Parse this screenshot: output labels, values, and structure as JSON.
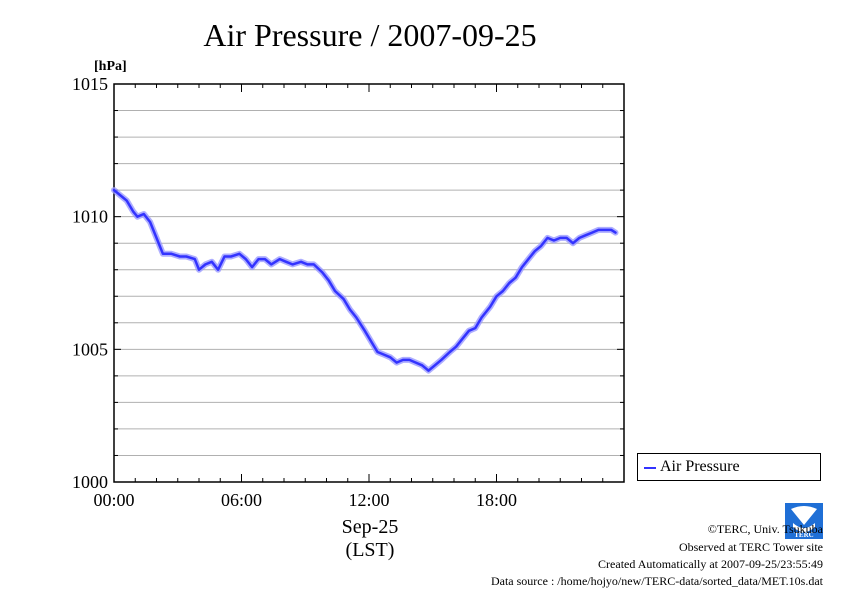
{
  "chart_data": {
    "type": "line",
    "title": "Air Pressure / 2007-09-25",
    "ylabel": "[hPa]",
    "xlabel": "Sep-25",
    "xlabel2": "(LST)",
    "ylim": [
      1000,
      1015
    ],
    "xlim": [
      0,
      24
    ],
    "yticks": [
      "1000",
      "1005",
      "1010",
      "1015"
    ],
    "xticks": [
      "00:00",
      "06:00",
      "12:00",
      "18:00"
    ],
    "grid": true,
    "legend_position": "outside-right",
    "series": [
      {
        "name": "Air Pressure",
        "color": "#3333ff",
        "x": [
          0,
          0.3,
          0.6,
          0.9,
          1.1,
          1.4,
          1.7,
          2.0,
          2.3,
          2.7,
          3.1,
          3.4,
          3.8,
          4.0,
          4.3,
          4.6,
          4.9,
          5.2,
          5.5,
          5.9,
          6.2,
          6.5,
          6.8,
          7.1,
          7.4,
          7.8,
          8.1,
          8.4,
          8.8,
          9.1,
          9.4,
          9.8,
          10.1,
          10.4,
          10.8,
          11.1,
          11.4,
          11.8,
          12.1,
          12.4,
          12.7,
          13.0,
          13.3,
          13.6,
          13.9,
          14.2,
          14.5,
          14.8,
          15.1,
          15.4,
          15.8,
          16.1,
          16.4,
          16.7,
          17.0,
          17.3,
          17.7,
          18.0,
          18.3,
          18.6,
          18.9,
          19.2,
          19.5,
          19.8,
          20.1,
          20.4,
          20.7,
          21.0,
          21.3,
          21.6,
          21.9,
          22.2,
          22.5,
          22.8,
          23.1,
          23.4,
          23.6
        ],
        "values": [
          1011.0,
          1010.8,
          1010.6,
          1010.2,
          1010.0,
          1010.1,
          1009.8,
          1009.2,
          1008.6,
          1008.6,
          1008.5,
          1008.5,
          1008.4,
          1008.0,
          1008.2,
          1008.3,
          1008.0,
          1008.5,
          1008.5,
          1008.6,
          1008.4,
          1008.1,
          1008.4,
          1008.4,
          1008.2,
          1008.4,
          1008.3,
          1008.2,
          1008.3,
          1008.2,
          1008.2,
          1007.9,
          1007.6,
          1007.2,
          1006.9,
          1006.5,
          1006.2,
          1005.7,
          1005.3,
          1004.9,
          1004.8,
          1004.7,
          1004.5,
          1004.6,
          1004.6,
          1004.5,
          1004.4,
          1004.2,
          1004.4,
          1004.6,
          1004.9,
          1005.1,
          1005.4,
          1005.7,
          1005.8,
          1006.2,
          1006.6,
          1007.0,
          1007.2,
          1007.5,
          1007.7,
          1008.1,
          1008.4,
          1008.7,
          1008.9,
          1009.2,
          1009.1,
          1009.2,
          1009.2,
          1009.0,
          1009.2,
          1009.3,
          1009.4,
          1009.5,
          1009.5,
          1009.5,
          1009.4
        ]
      }
    ]
  },
  "credits": {
    "copyright": "©TERC, Univ. Tsukuba",
    "observed": "Observed at TERC Tower site",
    "created": "Created Automatically at 2007-09-25/23:55:49",
    "source": "Data source : /home/hojyo/new/TERC-data/sorted_data/MET.10s.dat",
    "logo_text": "TERC"
  }
}
